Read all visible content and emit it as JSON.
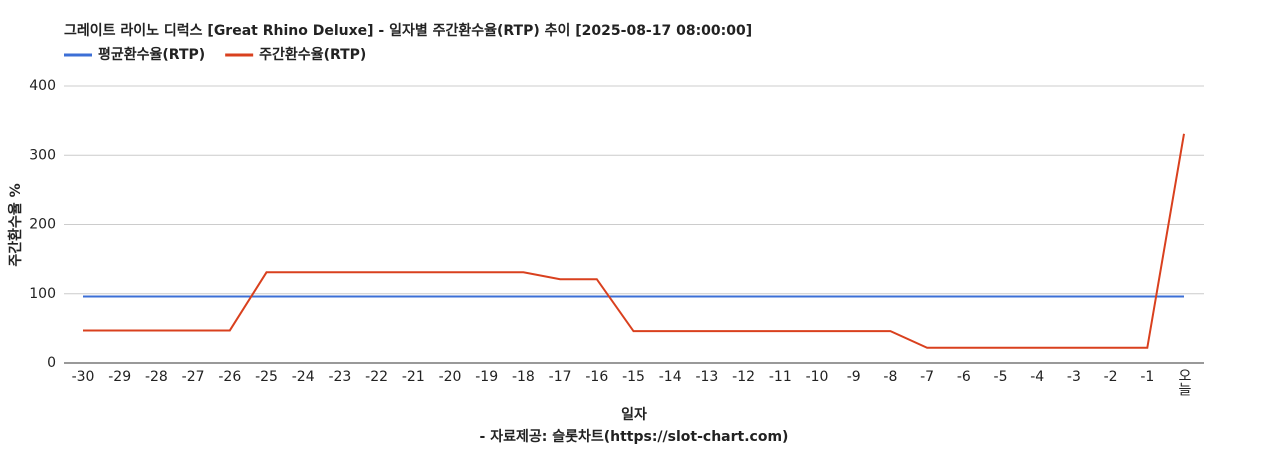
{
  "chart_data": {
    "type": "line",
    "title": "그레이트 라이노 디럭스 [Great Rhino Deluxe] - 일자별 주간환수율(RTP) 추이 [2025-08-17 08:00:00]",
    "x_label": "일자",
    "source": "- 자료제공: 슬롯차트(https://slot-chart.com)",
    "y_label": "주간환수율 %",
    "categories": [
      "-30",
      "-29",
      "-28",
      "-27",
      "-26",
      "-25",
      "-24",
      "-23",
      "-22",
      "-21",
      "-20",
      "-19",
      "-18",
      "-17",
      "-16",
      "-15",
      "-14",
      "-13",
      "-12",
      "-11",
      "-10",
      "-9",
      "-8",
      "-7",
      "-6",
      "-5",
      "-4",
      "-3",
      "-2",
      "-1",
      "오늘"
    ],
    "series": [
      {
        "name": "평균환수율(RTP)",
        "color": "#3c6fd6",
        "values": [
          96,
          96,
          96,
          96,
          96,
          96,
          96,
          96,
          96,
          96,
          96,
          96,
          96,
          96,
          96,
          96,
          96,
          96,
          96,
          96,
          96,
          96,
          96,
          96,
          96,
          96,
          96,
          96,
          96,
          96,
          96
        ]
      },
      {
        "name": "주간환수율(RTP)",
        "color": "#d9401e",
        "values": [
          47,
          47,
          47,
          47,
          47,
          131,
          131,
          131,
          131,
          131,
          131,
          131,
          131,
          121,
          121,
          46,
          46,
          46,
          46,
          46,
          46,
          46,
          46,
          22,
          22,
          22,
          22,
          22,
          22,
          22,
          331
        ]
      }
    ],
    "ylim": [
      0,
      400
    ],
    "yticks": [
      0,
      100,
      200,
      300,
      400
    ],
    "grid": true
  }
}
